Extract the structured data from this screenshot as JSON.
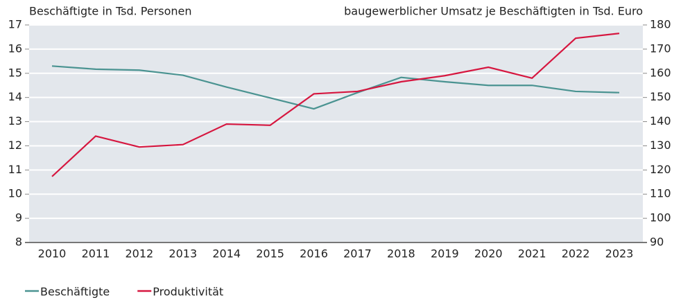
{
  "chart_data": {
    "type": "line",
    "y_label": "Beschäftigte in Tsd. Personen",
    "y2_label": "baugewerblicher Umsatz je Beschäftigten in Tsd. Euro",
    "categories": [
      "2010",
      "2011",
      "2012",
      "2013",
      "2014",
      "2015",
      "2016",
      "2017",
      "2018",
      "2019",
      "2020",
      "2021",
      "2022",
      "2023"
    ],
    "series": [
      {
        "name": "Beschäftigte",
        "color": "#4a9391",
        "values": [
          15.3,
          15.17,
          15.13,
          14.92,
          14.43,
          13.98,
          13.53,
          14.2,
          14.83,
          14.65,
          14.5,
          14.5,
          14.25,
          14.2
        ]
      },
      {
        "name": "Produktivität",
        "color": "#d6163f",
        "axis": "y2",
        "values": [
          117.3,
          134,
          129.5,
          130.5,
          139,
          138.5,
          151.5,
          152.5,
          156.5,
          159,
          162.5,
          158,
          174.5,
          176.5
        ]
      }
    ],
    "ylim": [
      8,
      17
    ],
    "yticks": [
      8,
      9,
      10,
      11,
      12,
      13,
      14,
      15,
      16,
      17
    ],
    "y2lim": [
      90,
      180
    ],
    "y2ticks": [
      90,
      100,
      110,
      120,
      130,
      140,
      150,
      160,
      170,
      180
    ],
    "grid": true
  }
}
